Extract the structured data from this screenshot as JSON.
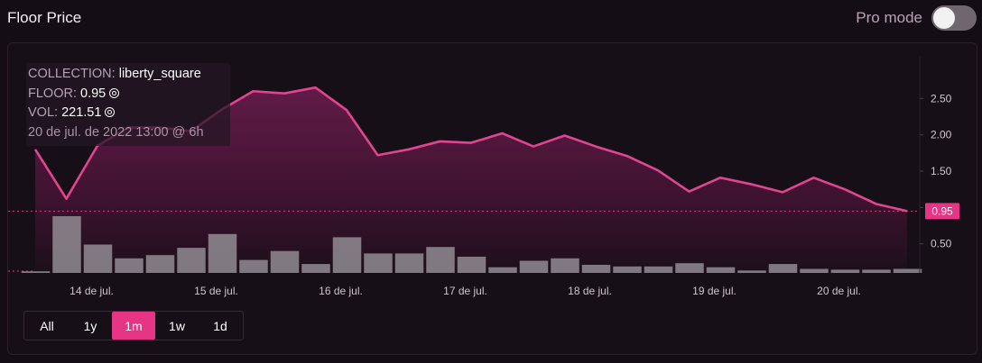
{
  "header": {
    "title": "Floor Price",
    "pro_mode_label": "Pro mode",
    "pro_mode_on": false
  },
  "info": {
    "collection_key": "COLLECTION:",
    "collection_value": "liberty_square",
    "floor_key": "FLOOR:",
    "floor_value": "0.95",
    "vol_key": "VOL:",
    "vol_value": "221.51",
    "date": "20 de jul. de 2022 13:00 @ 6h",
    "coin_icon": "sol-coin-icon"
  },
  "ranges": {
    "items": [
      "All",
      "1y",
      "1m",
      "1w",
      "1d"
    ],
    "active": "1m"
  },
  "colors": {
    "accent": "#e63585",
    "line": "#e2458f",
    "volume_bar": "#8c858d"
  },
  "chart_data": {
    "type": "line",
    "y_ticks": [
      "2.50",
      "2.00",
      "1.50",
      "1.00",
      "0.50"
    ],
    "ylim": [
      0.1,
      2.95
    ],
    "x_ticks": [
      {
        "label": "14 de jul.",
        "x": 1
      },
      {
        "label": "15 de jul.",
        "x": 5
      },
      {
        "label": "16 de jul.",
        "x": 9
      },
      {
        "label": "17 de jul.",
        "x": 13
      },
      {
        "label": "18 de jul.",
        "x": 17
      },
      {
        "label": "19 de jul.",
        "x": 21
      },
      {
        "label": "20 de jul.",
        "x": 25
      }
    ],
    "current_value_label": "0.95",
    "current_value": 0.95,
    "price_series": {
      "x": [
        0,
        1,
        2,
        3,
        4,
        5,
        6,
        7,
        8,
        9,
        10,
        11,
        12,
        13,
        14,
        15,
        16,
        17,
        18,
        19,
        20,
        21,
        22,
        23,
        24,
        25,
        26,
        27,
        28
      ],
      "values": [
        1.8,
        1.12,
        1.85,
        2.1,
        2.1,
        2.05,
        2.35,
        2.6,
        2.57,
        2.65,
        2.34,
        1.72,
        1.8,
        1.91,
        1.89,
        2.02,
        1.84,
        1.99,
        1.84,
        1.71,
        1.51,
        1.22,
        1.41,
        1.32,
        1.21,
        1.41,
        1.25,
        1.05,
        0.95
      ]
    },
    "volume_series": {
      "x": [
        0,
        1,
        2,
        3,
        4,
        5,
        6,
        7,
        8,
        9,
        10,
        11,
        12,
        13,
        14,
        15,
        16,
        17,
        18,
        19,
        20,
        21,
        22,
        23,
        24,
        25,
        26,
        27,
        28
      ],
      "values": [
        0.02,
        0.7,
        0.35,
        0.18,
        0.22,
        0.31,
        0.48,
        0.16,
        0.27,
        0.11,
        0.44,
        0.24,
        0.24,
        0.32,
        0.2,
        0.07,
        0.15,
        0.18,
        0.1,
        0.08,
        0.08,
        0.12,
        0.07,
        0.03,
        0.11,
        0.05,
        0.04,
        0.04,
        0.05
      ],
      "vmax": 1.0
    },
    "legend": "none",
    "grid": false
  }
}
